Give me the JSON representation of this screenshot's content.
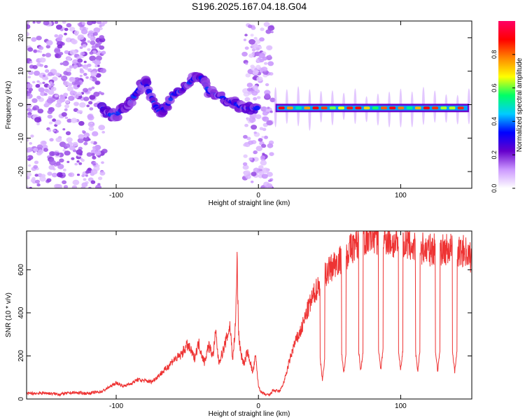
{
  "title": "S196.2025.167.04.18.G04",
  "chart_data": [
    {
      "type": "heatmap",
      "title": "S196.2025.167.04.18.G04",
      "xlabel": "Height of straight line (km)",
      "ylabel": "Frequency (Hz)",
      "xlim": [
        -163,
        150
      ],
      "ylim": [
        -25,
        25
      ],
      "x_ticks": [
        -100,
        0,
        100
      ],
      "y_ticks": [
        -20,
        -10,
        0,
        10,
        20
      ],
      "colorbar": {
        "label": "Normalized spectral amplitude",
        "range": [
          0,
          1
        ],
        "ticks": [
          0.0,
          0.2,
          0.4,
          0.6,
          0.8
        ],
        "tick_labels": [
          "0.0",
          "0.2",
          "0.4",
          "0.6",
          "0.8"
        ],
        "colormap": [
          "#ffffff",
          "#cc99ff",
          "#6600cc",
          "#0000ff",
          "#00ccff",
          "#00ff66",
          "#ffff00",
          "#ff8800",
          "#ff0000",
          "#ff0066"
        ]
      },
      "features": [
        {
          "name": "noise-region",
          "x_range": [
            -163,
            -108
          ],
          "f_range": [
            -25,
            25
          ],
          "amplitude": 0.12
        },
        {
          "name": "noise-column",
          "x_range": [
            -10,
            10
          ],
          "f_range": [
            -25,
            25
          ],
          "amplitude": 0.1
        },
        {
          "name": "signal-track",
          "points": [
            [
              -110,
              -1
            ],
            [
              -105,
              -3
            ],
            [
              -100,
              -3
            ],
            [
              -95,
              -1
            ],
            [
              -90,
              1
            ],
            [
              -85,
              4
            ],
            [
              -80,
              7
            ],
            [
              -77,
              4
            ],
            [
              -73,
              0
            ],
            [
              -70,
              -2
            ],
            [
              -65,
              -1
            ],
            [
              -60,
              3
            ],
            [
              -55,
              4
            ],
            [
              -50,
              6
            ],
            [
              -45,
              8
            ],
            [
              -40,
              8
            ],
            [
              -35,
              4
            ],
            [
              -30,
              3
            ],
            [
              -25,
              2
            ],
            [
              -20,
              1
            ],
            [
              -15,
              0
            ],
            [
              -10,
              -1
            ],
            [
              -5,
              -1
            ],
            [
              0,
              -1
            ]
          ],
          "amplitude": 0.3
        },
        {
          "name": "carrier-line",
          "x_range": [
            12,
            148
          ],
          "frequency": -1,
          "amplitude": 0.9
        }
      ]
    },
    {
      "type": "line",
      "xlabel": "Height of straight line (km)",
      "ylabel": "SNR (10 * v/v)",
      "xlim": [
        -163,
        150
      ],
      "ylim": [
        0,
        780
      ],
      "x_ticks": [
        -100,
        0,
        100
      ],
      "y_ticks": [
        0,
        200,
        400,
        600
      ],
      "color": "#ee3333",
      "series": [
        {
          "name": "SNR",
          "x": [
            -163,
            -150,
            -140,
            -130,
            -120,
            -110,
            -105,
            -100,
            -95,
            -90,
            -85,
            -80,
            -75,
            -70,
            -65,
            -60,
            -55,
            -50,
            -48,
            -45,
            -42,
            -40,
            -38,
            -35,
            -32,
            -30,
            -28,
            -25,
            -22,
            -20,
            -18,
            -16,
            -15,
            -14,
            -12,
            -10,
            -8,
            -6,
            -5,
            -4,
            -2,
            0,
            2,
            5,
            8,
            10,
            15,
            18,
            22,
            25,
            30,
            35,
            40,
            45,
            50,
            55,
            60,
            65,
            70,
            75,
            80,
            85,
            90,
            95,
            100,
            105,
            110,
            115,
            120,
            125,
            130,
            135,
            140,
            145,
            150
          ],
          "values": [
            25,
            28,
            22,
            30,
            26,
            35,
            55,
            75,
            60,
            70,
            90,
            85,
            80,
            110,
            140,
            180,
            200,
            250,
            230,
            190,
            260,
            210,
            170,
            250,
            200,
            310,
            170,
            220,
            290,
            340,
            180,
            360,
            660,
            300,
            200,
            160,
            220,
            180,
            150,
            120,
            200,
            60,
            30,
            20,
            18,
            40,
            35,
            80,
            180,
            250,
            320,
            420,
            500,
            560,
            600,
            640,
            650,
            700,
            720,
            740,
            760,
            740,
            750,
            720,
            710,
            720,
            700,
            700,
            690,
            700,
            690,
            700,
            680,
            690,
            650
          ]
        }
      ],
      "dips": [
        {
          "x": 45,
          "value": 90
        },
        {
          "x": 60,
          "value": 120
        },
        {
          "x": 72,
          "value": 130
        },
        {
          "x": 86,
          "value": 135
        },
        {
          "x": 100,
          "value": 135
        },
        {
          "x": 112,
          "value": 130
        },
        {
          "x": 126,
          "value": 130
        },
        {
          "x": 138,
          "value": 125
        }
      ]
    }
  ]
}
